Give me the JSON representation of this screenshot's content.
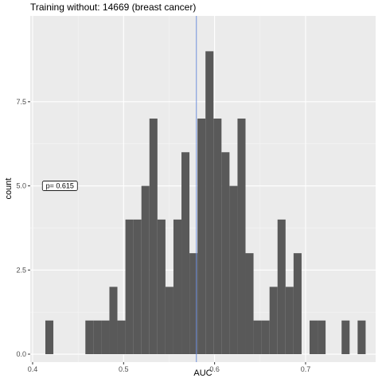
{
  "chart_data": {
    "type": "histogram",
    "title": "Training without: 14669 (breast cancer)",
    "xlabel": "AUC",
    "ylabel": "count",
    "bins": [
      0.414,
      0.4228,
      0.4316,
      0.4404,
      0.4492,
      0.458,
      0.4668,
      0.4756,
      0.4844,
      0.4932,
      0.502,
      0.5108,
      0.5196,
      0.5284,
      0.5372,
      0.546,
      0.5548,
      0.5636,
      0.5724,
      0.5812,
      0.59,
      0.5988,
      0.6076,
      0.6164,
      0.6252,
      0.634,
      0.6428,
      0.6516,
      0.6604,
      0.6692,
      0.678,
      0.6868,
      0.6956,
      0.7044,
      0.7132,
      0.722,
      0.7308,
      0.7396,
      0.7484,
      0.7572,
      0.766
    ],
    "values": [
      1,
      0,
      0,
      0,
      0,
      1,
      1,
      1,
      2,
      1,
      4,
      4,
      5,
      7,
      4,
      2,
      4,
      6,
      3,
      7,
      9,
      7,
      6,
      5,
      7,
      3,
      1,
      1,
      2,
      4,
      2,
      3,
      0,
      1,
      1,
      0,
      0,
      1,
      0,
      1
    ],
    "color": "#595959",
    "vline": {
      "x": 0.58,
      "color": "#6f8fdb"
    },
    "annotation": {
      "text": "p= 0.615",
      "x": 0.43,
      "y": 5
    },
    "xlim": [
      0.3974,
      0.777
    ],
    "ylim": [
      -0.236,
      10.05
    ],
    "xticks": [
      0.4,
      0.5,
      0.6,
      0.7
    ],
    "yticks": [
      {
        "value": 0,
        "label": "0.0"
      },
      2.5,
      {
        "value": 5,
        "label": "5.0"
      },
      7.5
    ],
    "grid": true
  }
}
